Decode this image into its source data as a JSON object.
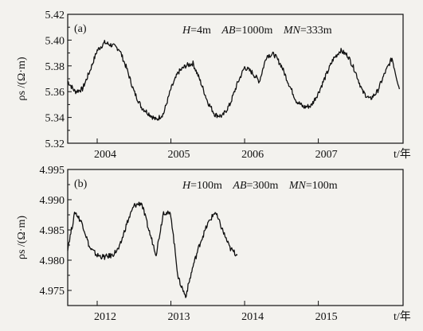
{
  "chart_data": [
    {
      "type": "line",
      "panel_label": "(a)",
      "annotation": {
        "H": "4m",
        "AB": "1000m",
        "MN": "333m"
      },
      "ylabel": "ρs /(Ω·m)",
      "xlabel": "t/年",
      "ylim": [
        5.32,
        5.42
      ],
      "y_ticks": [
        "5.42",
        "5.40",
        "5.38",
        "5.36",
        "5.34",
        "5.32"
      ],
      "x_range": [
        2003.6,
        2008.15
      ],
      "x_ticks": [
        {
          "value": 2004.0,
          "label": "2004"
        },
        {
          "value": 2005.0,
          "label": "2005"
        },
        {
          "value": 2006.0,
          "label": "2006"
        },
        {
          "value": 2007.0,
          "label": "2007"
        }
      ],
      "series": [
        {
          "x": [
            2003.6,
            2003.7,
            2003.8,
            2003.9,
            2004.0,
            2004.1,
            2004.2,
            2004.3,
            2004.4,
            2004.5,
            2004.6,
            2004.7,
            2004.8,
            2004.9,
            2005.0,
            2005.1,
            2005.2,
            2005.3,
            2005.4,
            2005.5,
            2005.6,
            2005.7,
            2005.8,
            2005.9,
            2006.0,
            2006.1,
            2006.2,
            2006.3,
            2006.4,
            2006.5,
            2006.6,
            2006.7,
            2006.8,
            2006.9,
            2007.0,
            2007.1,
            2007.2,
            2007.3,
            2007.4,
            2007.5,
            2007.6,
            2007.7,
            2007.8,
            2007.9,
            2008.0,
            2008.1
          ],
          "values": [
            5.368,
            5.36,
            5.362,
            5.376,
            5.392,
            5.398,
            5.396,
            5.393,
            5.378,
            5.36,
            5.348,
            5.343,
            5.338,
            5.343,
            5.362,
            5.375,
            5.38,
            5.382,
            5.368,
            5.352,
            5.342,
            5.341,
            5.35,
            5.366,
            5.379,
            5.375,
            5.368,
            5.388,
            5.389,
            5.38,
            5.366,
            5.353,
            5.348,
            5.349,
            5.359,
            5.372,
            5.385,
            5.392,
            5.388,
            5.376,
            5.36,
            5.354,
            5.36,
            5.374,
            5.386,
            5.362
          ]
        }
      ]
    },
    {
      "type": "line",
      "panel_label": "(b)",
      "annotation": {
        "H": "100m",
        "AB": "300m",
        "MN": "100m"
      },
      "ylabel": "ρs /(Ω·m)",
      "xlabel": "t/年",
      "ylim": [
        4.9725,
        4.995
      ],
      "y_ticks": [
        "4.995",
        "4.990",
        "4.985",
        "4.980",
        "4.975"
      ],
      "x_range": [
        2011.6,
        2016.15
      ],
      "x_ticks": [
        {
          "value": 2012.0,
          "label": "2012"
        },
        {
          "value": 2013.0,
          "label": "2013"
        },
        {
          "value": 2014.0,
          "label": "2014"
        },
        {
          "value": 2015.0,
          "label": "2015"
        }
      ],
      "series": [
        {
          "x": [
            2011.6,
            2011.7,
            2011.8,
            2011.9,
            2012.0,
            2012.1,
            2012.2,
            2012.3,
            2012.4,
            2012.5,
            2012.6,
            2012.7,
            2012.8,
            2012.9,
            2013.0,
            2013.1,
            2013.2,
            2013.3,
            2013.4,
            2013.5,
            2013.6,
            2013.7,
            2013.8,
            2013.9
          ],
          "values": [
            4.982,
            4.988,
            4.986,
            4.982,
            4.9808,
            4.9805,
            4.9808,
            4.982,
            4.986,
            4.989,
            4.9895,
            4.985,
            4.981,
            4.988,
            4.9875,
            4.977,
            4.974,
            4.979,
            4.983,
            4.986,
            4.988,
            4.985,
            4.982,
            4.9808
          ]
        }
      ]
    }
  ]
}
